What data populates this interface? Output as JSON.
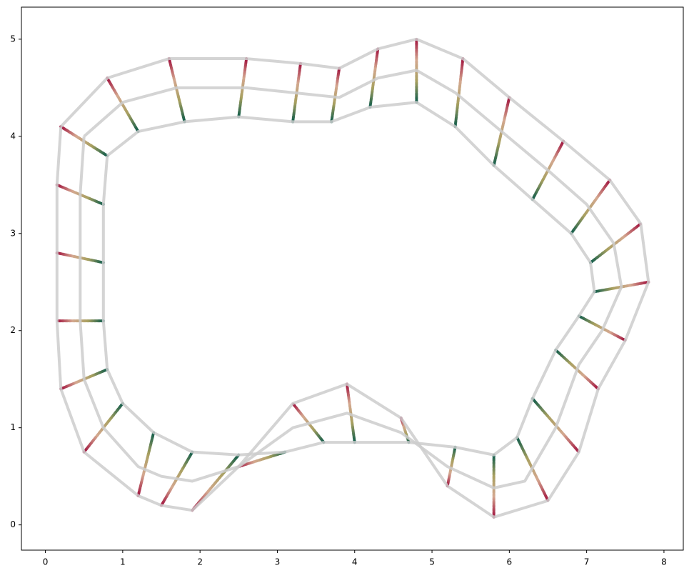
{
  "chart_data": {
    "type": "line",
    "xlim": [
      -0.31,
      8.25
    ],
    "ylim": [
      -0.26,
      5.33
    ],
    "xticks": [
      0,
      1,
      2,
      3,
      4,
      5,
      6,
      7,
      8
    ],
    "yticks": [
      0,
      1,
      2,
      3,
      4,
      5
    ],
    "normal_colors": [
      "#0b5a4a",
      "#a8a060",
      "#d4a890",
      "#a0103c"
    ],
    "series": [
      {
        "color": "#cccccc",
        "x": [
          0.8,
          1.2,
          1.8,
          2.5,
          3.2,
          3.7,
          4.2,
          4.8,
          5.3,
          5.8,
          6.3,
          6.8,
          7.05,
          7.1,
          6.9,
          6.6,
          6.3,
          6.1,
          5.8,
          5.3,
          4.7,
          4.0,
          3.6,
          3.1,
          2.5,
          1.9,
          1.4,
          1.0,
          0.8,
          0.75,
          0.75,
          0.75,
          0.8
        ],
        "values": [
          3.8,
          4.05,
          4.15,
          4.2,
          4.15,
          4.15,
          4.3,
          4.35,
          4.1,
          3.7,
          3.35,
          3.0,
          2.7,
          2.4,
          2.15,
          1.8,
          1.3,
          0.9,
          0.72,
          0.8,
          0.85,
          0.85,
          0.85,
          0.75,
          0.72,
          0.75,
          0.95,
          1.25,
          1.6,
          2.1,
          2.7,
          3.3,
          3.8
        ]
      },
      {
        "color": "#cccccc",
        "x": [
          0.5,
          1.0,
          1.7,
          2.6,
          3.2,
          3.8,
          4.3,
          4.8,
          5.3,
          5.9,
          6.5,
          7.0,
          7.35,
          7.45,
          7.2,
          6.9,
          6.6,
          6.2,
          5.8,
          5.2,
          4.6,
          3.9,
          3.2,
          2.5,
          1.9,
          1.5,
          1.2,
          0.75,
          0.5,
          0.45,
          0.45,
          0.45,
          0.5
        ],
        "values": [
          4.0,
          4.35,
          4.5,
          4.5,
          4.45,
          4.4,
          4.6,
          4.68,
          4.45,
          4.05,
          3.65,
          3.3,
          2.9,
          2.45,
          2.0,
          1.65,
          1.0,
          0.45,
          0.38,
          0.6,
          0.95,
          1.15,
          1.0,
          0.6,
          0.45,
          0.5,
          0.6,
          1.0,
          1.5,
          2.1,
          2.7,
          3.4,
          4.0
        ]
      },
      {
        "color": "#cccccc",
        "x": [
          0.2,
          0.8,
          1.6,
          2.6,
          3.3,
          3.8,
          4.3,
          4.8,
          5.4,
          6.0,
          6.7,
          7.3,
          7.7,
          7.8,
          7.5,
          7.15,
          6.9,
          6.5,
          5.8,
          5.2,
          4.6,
          3.9,
          3.2,
          2.5,
          1.9,
          1.5,
          1.2,
          0.5,
          0.2,
          0.15,
          0.15,
          0.15,
          0.2
        ],
        "values": [
          4.1,
          4.6,
          4.8,
          4.8,
          4.75,
          4.7,
          4.9,
          5.0,
          4.8,
          4.4,
          3.95,
          3.55,
          3.1,
          2.5,
          1.9,
          1.4,
          0.75,
          0.25,
          0.08,
          0.4,
          1.1,
          1.45,
          1.25,
          0.6,
          0.15,
          0.2,
          0.3,
          0.75,
          1.4,
          2.1,
          2.8,
          3.5,
          4.1
        ]
      }
    ]
  }
}
